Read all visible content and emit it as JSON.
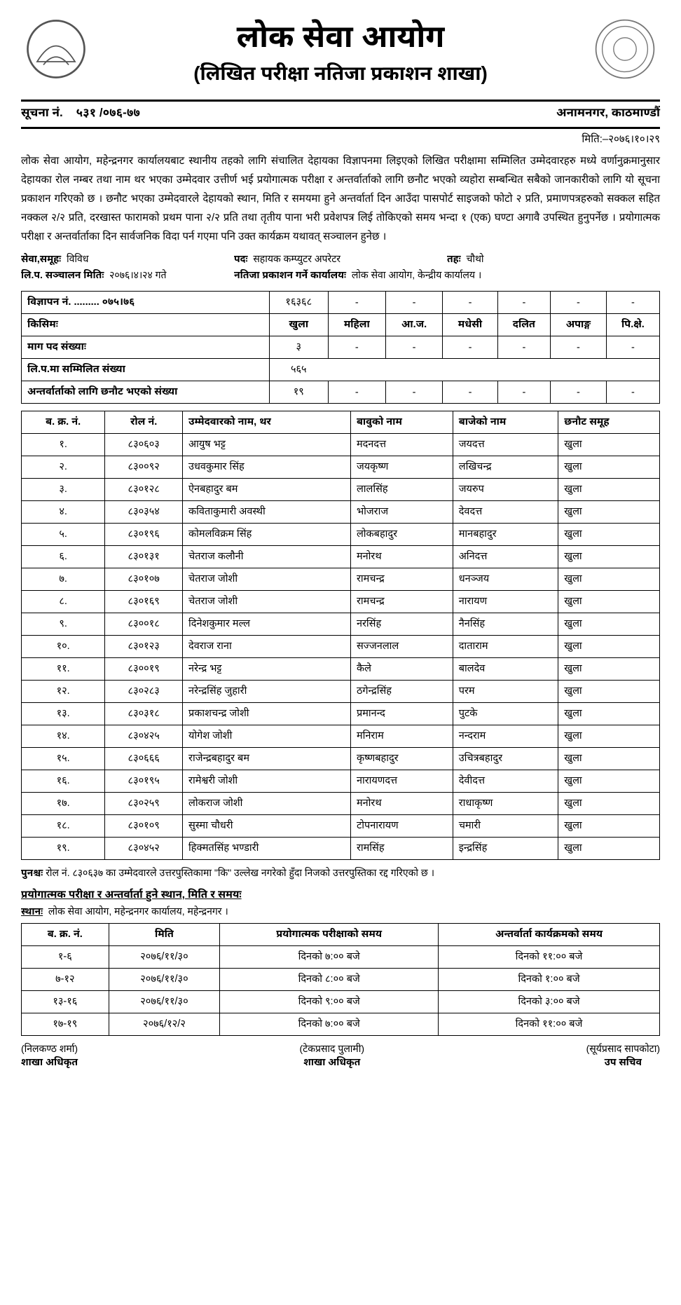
{
  "header": {
    "org_title": "लोक सेवा आयोग",
    "sub_title": "(लिखित परीक्षा नतिजा प्रकाशन शाखा)",
    "notice_label": "सूचना नं.",
    "notice_no": "५३१ /०७६-७७",
    "address": "अनामनगर, काठमाण्डौं",
    "date_line": "मिति:–२०७६।१०।२९"
  },
  "body_text": "लोक सेवा आयोग, महेन्द्रनगर कार्यालयबाट स्थानीय तहको लागि संचालित देहायका विज्ञापनमा लिइएको लिखित परीक्षामा सम्मिलित उम्मेदवारहरु मध्ये वर्णानुक्रमानुसार देहायका रोल नम्बर तथा नाम थर भएका उम्मेदवार उत्तीर्ण भई प्रयोगात्मक परीक्षा र अन्तर्वार्ताको लागि छनौट भएको व्यहोरा सम्बन्धित सबैको जानकारीको लागि यो सूचना प्रकाशन गरिएको छ । छनौट भएका उम्मेदवारले देहायको स्थान, मिति र समयमा हुने अन्तर्वार्ता दिन आउँदा पासपोर्ट साइजको फोटो २ प्रति, प्रमाणपत्रहरुको सक्कल सहित नक्कल २/२ प्रति, दरखास्त फारामको प्रथम पाना २/२ प्रति तथा तृतीय पाना भरी प्रवेशपत्र लिई तोकिएको समय भन्दा १ (एक) घण्टा अगावै उपस्थित हुनुपर्नेछ । प्रयोगात्मक परीक्षा र अन्तर्वार्ताका दिन सार्वजनिक विदा पर्न गएमा पनि उक्त कार्यक्रम यथावत् सञ्चालन  हुनेछ ।",
  "meta": {
    "service_label": "सेवा,समूहः",
    "service_value": "विविध",
    "post_label": "पदः",
    "post_value": "सहायक कम्प्युटर अपरेटर",
    "level_label": "तहः",
    "level_value": "चौथो",
    "exam_date_label": "लि.प. सञ्चालन मितिः",
    "exam_date_value": "२०७६।४।२४ गते",
    "pub_office_label": "नतिजा प्रकाशन गर्ने कार्यालयः",
    "pub_office_value": "लोक सेवा आयोग, केन्द्रीय कार्यालय ।"
  },
  "summary": {
    "row1_label": "विज्ञापन नं. ......... ०७५।७६",
    "row1": [
      "१६३६८",
      "-",
      "-",
      "-",
      "-",
      "-",
      "-"
    ],
    "row2_label": "किसिमः",
    "row2": [
      "खुला",
      "महिला",
      "आ.ज.",
      "मधेसी",
      "दलित",
      "अपाङ्ग",
      "पि.क्षे."
    ],
    "row3_label": "माग पद संख्याः",
    "row3": [
      "३",
      "-",
      "-",
      "-",
      "-",
      "-",
      "-"
    ],
    "row4_label": "लि.प.मा सम्मिलित संख्या",
    "row4_value": "५६५",
    "row5_label": "अन्तर्वार्ताको लागि छनौट भएको संख्या",
    "row5": [
      "१९",
      "-",
      "-",
      "-",
      "-",
      "-",
      "-"
    ]
  },
  "cand_headers": [
    "ब. क्र. नं.",
    "रोल नं.",
    "उम्मेदवारको नाम, थर",
    "बावुको नाम",
    "बाजेको नाम",
    "छनौट समूह"
  ],
  "candidates": [
    {
      "sn": "१.",
      "roll": "८३०६०३",
      "name": "आयुष भट्ट",
      "father": "मदनदत्त",
      "gfather": "जयदत्त",
      "grp": "खुला"
    },
    {
      "sn": "२.",
      "roll": "८३००९२",
      "name": "उधवकुमार सिंह",
      "father": "जयकृष्ण",
      "gfather": "लखिचन्द्र",
      "grp": "खुला"
    },
    {
      "sn": "३.",
      "roll": "८३०१२८",
      "name": "ऐनबहादुर बम",
      "father": "लालसिंह",
      "gfather": "जयरुप",
      "grp": "खुला"
    },
    {
      "sn": "४.",
      "roll": "८३०३५४",
      "name": "कविताकुमारी अवस्थी",
      "father": "भोजराज",
      "gfather": "देवदत्त",
      "grp": "खुला"
    },
    {
      "sn": "५.",
      "roll": "८३०१९६",
      "name": "कोमलविक्रम सिंह",
      "father": "लोकबहादुर",
      "gfather": "मानबहादुर",
      "grp": "खुला"
    },
    {
      "sn": "६.",
      "roll": "८३०१३१",
      "name": "चेतराज कलौनी",
      "father": "मनोरथ",
      "gfather": "अनिदत्त",
      "grp": "खुला"
    },
    {
      "sn": "७.",
      "roll": "८३०१०७",
      "name": "चेतराज जोशी",
      "father": "रामचन्द्र",
      "gfather": "धनञ्जय",
      "grp": "खुला"
    },
    {
      "sn": "८.",
      "roll": "८३०१६९",
      "name": "चेतराज जोशी",
      "father": "रामचन्द्र",
      "gfather": "नारायण",
      "grp": "खुला"
    },
    {
      "sn": "९.",
      "roll": "८३००१८",
      "name": "दिनेशकुमार मल्ल",
      "father": "नरसिंह",
      "gfather": "नैनसिंह",
      "grp": "खुला"
    },
    {
      "sn": "१०.",
      "roll": "८३०१२३",
      "name": "देवराज राना",
      "father": "सज्जनलाल",
      "gfather": "दाताराम",
      "grp": "खुला"
    },
    {
      "sn": "११.",
      "roll": "८३००१९",
      "name": "नरेन्द्र भट्ट",
      "father": "कैले",
      "gfather": "बालदेव",
      "grp": "खुला"
    },
    {
      "sn": "१२.",
      "roll": "८३०२८३",
      "name": "नरेन्द्रसिंह जुहारी",
      "father": "ठगेन्द्रसिंह",
      "gfather": "परम",
      "grp": "खुला"
    },
    {
      "sn": "१३.",
      "roll": "८३०३१८",
      "name": "प्रकाशचन्द्र जोशी",
      "father": "प्रमानन्द",
      "gfather": "पुटके",
      "grp": "खुला"
    },
    {
      "sn": "१४.",
      "roll": "८३०४२५",
      "name": "योगेश जोशी",
      "father": "मनिराम",
      "gfather": "नन्दराम",
      "grp": "खुला"
    },
    {
      "sn": "१५.",
      "roll": "८३०६६६",
      "name": "राजेन्द्रबहादुर बम",
      "father": "कृष्णबहादुर",
      "gfather": "उचित्रबहादुर",
      "grp": "खुला"
    },
    {
      "sn": "१६.",
      "roll": "८३०१९५",
      "name": "रामेश्वरी जोशी",
      "father": "नारायणदत्त",
      "gfather": "देवीदत्त",
      "grp": "खुला"
    },
    {
      "sn": "१७.",
      "roll": "८३०२५९",
      "name": "लोकराज जोशी",
      "father": "मनोरथ",
      "gfather": "राधाकृष्ण",
      "grp": "खुला"
    },
    {
      "sn": "१८.",
      "roll": "८३०१०९",
      "name": "सुस्मा चौधरी",
      "father": "टोपनारायण",
      "gfather": "चमारी",
      "grp": "खुला"
    },
    {
      "sn": "१९.",
      "roll": "८३०४५२",
      "name": "हिक्मतसिंह भण्डारी",
      "father": "रामसिंह",
      "gfather": "इन्द्रसिंह",
      "grp": "खुला"
    }
  ],
  "note": {
    "label": "पुनश्चः",
    "text": "रोल नं. ८३०६३७ का उम्मेदवारले उत्तरपुस्तिकामा \"कि\" उल्लेख नगरेको हुँदा निजको उत्तरपुस्तिका रद्द गरिएको छ ।"
  },
  "schedule": {
    "heading": "प्रयोगात्मक परीक्षा र अन्तर्वार्ता हुने स्थान, मिति र समयः",
    "venue_label": "स्थानः",
    "venue": "लोक सेवा आयोग, महेन्द्रनगर कार्यालय, महेन्द्रनगर ।",
    "headers": [
      "ब. क्र. नं.",
      "मिति",
      "प्रयोगात्मक परीक्षाको समय",
      "अन्तर्वार्ता कार्यक्रमको समय"
    ],
    "rows": [
      [
        "१-६",
        "२०७६/११/३०",
        "दिनको ७:०० बजे",
        "दिनको ११:०० बजे"
      ],
      [
        "७-१२",
        "२०७६/११/३०",
        "दिनको ८:०० बजे",
        "दिनको १:०० बजे"
      ],
      [
        "१३-१६",
        "२०७६/११/३०",
        "दिनको ९:०० बजे",
        "दिनको ३:०० बजे"
      ],
      [
        "१७-१९",
        "२०७६/१२/२",
        "दिनको ७:०० बजे",
        "दिनको ११:०० बजे"
      ]
    ]
  },
  "signatures": [
    {
      "name": "(निलकण्ठ शर्मा)",
      "title": "शाखा अधिकृत"
    },
    {
      "name": "(टेकप्रसाद पुलामी)",
      "title": "शाखा अधिकृत"
    },
    {
      "name": "(सूर्यप्रसाद सापकोटा)",
      "title": "उप सचिव"
    }
  ]
}
